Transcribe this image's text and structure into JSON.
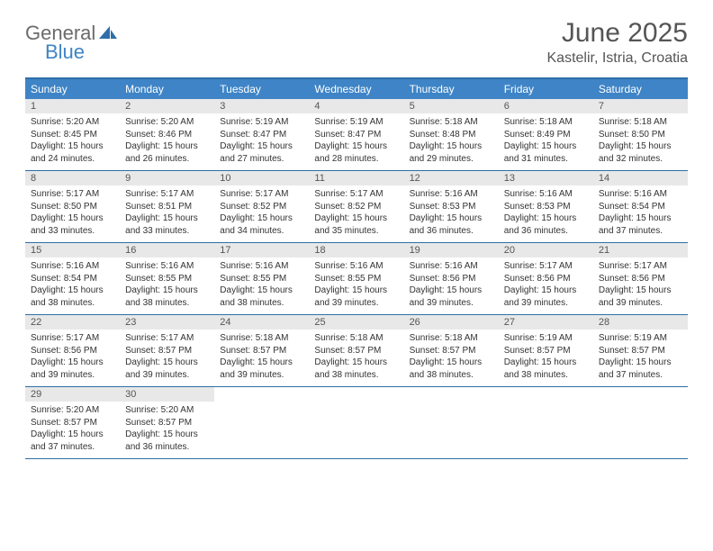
{
  "brand": {
    "text_general": "General",
    "text_blue": "Blue",
    "icon_color": "#2f6ea8"
  },
  "title": "June 2025",
  "location": "Kastelir, Istria, Croatia",
  "colors": {
    "header_bg": "#3e84c6",
    "header_text": "#ffffff",
    "border": "#2f6ea8",
    "daynum_bg": "#e8e8e8",
    "body_text": "#333333",
    "title_text": "#555555"
  },
  "day_names": [
    "Sunday",
    "Monday",
    "Tuesday",
    "Wednesday",
    "Thursday",
    "Friday",
    "Saturday"
  ],
  "weeks": [
    [
      {
        "num": "1",
        "sunrise": "Sunrise: 5:20 AM",
        "sunset": "Sunset: 8:45 PM",
        "daylight": "Daylight: 15 hours and 24 minutes."
      },
      {
        "num": "2",
        "sunrise": "Sunrise: 5:20 AM",
        "sunset": "Sunset: 8:46 PM",
        "daylight": "Daylight: 15 hours and 26 minutes."
      },
      {
        "num": "3",
        "sunrise": "Sunrise: 5:19 AM",
        "sunset": "Sunset: 8:47 PM",
        "daylight": "Daylight: 15 hours and 27 minutes."
      },
      {
        "num": "4",
        "sunrise": "Sunrise: 5:19 AM",
        "sunset": "Sunset: 8:47 PM",
        "daylight": "Daylight: 15 hours and 28 minutes."
      },
      {
        "num": "5",
        "sunrise": "Sunrise: 5:18 AM",
        "sunset": "Sunset: 8:48 PM",
        "daylight": "Daylight: 15 hours and 29 minutes."
      },
      {
        "num": "6",
        "sunrise": "Sunrise: 5:18 AM",
        "sunset": "Sunset: 8:49 PM",
        "daylight": "Daylight: 15 hours and 31 minutes."
      },
      {
        "num": "7",
        "sunrise": "Sunrise: 5:18 AM",
        "sunset": "Sunset: 8:50 PM",
        "daylight": "Daylight: 15 hours and 32 minutes."
      }
    ],
    [
      {
        "num": "8",
        "sunrise": "Sunrise: 5:17 AM",
        "sunset": "Sunset: 8:50 PM",
        "daylight": "Daylight: 15 hours and 33 minutes."
      },
      {
        "num": "9",
        "sunrise": "Sunrise: 5:17 AM",
        "sunset": "Sunset: 8:51 PM",
        "daylight": "Daylight: 15 hours and 33 minutes."
      },
      {
        "num": "10",
        "sunrise": "Sunrise: 5:17 AM",
        "sunset": "Sunset: 8:52 PM",
        "daylight": "Daylight: 15 hours and 34 minutes."
      },
      {
        "num": "11",
        "sunrise": "Sunrise: 5:17 AM",
        "sunset": "Sunset: 8:52 PM",
        "daylight": "Daylight: 15 hours and 35 minutes."
      },
      {
        "num": "12",
        "sunrise": "Sunrise: 5:16 AM",
        "sunset": "Sunset: 8:53 PM",
        "daylight": "Daylight: 15 hours and 36 minutes."
      },
      {
        "num": "13",
        "sunrise": "Sunrise: 5:16 AM",
        "sunset": "Sunset: 8:53 PM",
        "daylight": "Daylight: 15 hours and 36 minutes."
      },
      {
        "num": "14",
        "sunrise": "Sunrise: 5:16 AM",
        "sunset": "Sunset: 8:54 PM",
        "daylight": "Daylight: 15 hours and 37 minutes."
      }
    ],
    [
      {
        "num": "15",
        "sunrise": "Sunrise: 5:16 AM",
        "sunset": "Sunset: 8:54 PM",
        "daylight": "Daylight: 15 hours and 38 minutes."
      },
      {
        "num": "16",
        "sunrise": "Sunrise: 5:16 AM",
        "sunset": "Sunset: 8:55 PM",
        "daylight": "Daylight: 15 hours and 38 minutes."
      },
      {
        "num": "17",
        "sunrise": "Sunrise: 5:16 AM",
        "sunset": "Sunset: 8:55 PM",
        "daylight": "Daylight: 15 hours and 38 minutes."
      },
      {
        "num": "18",
        "sunrise": "Sunrise: 5:16 AM",
        "sunset": "Sunset: 8:55 PM",
        "daylight": "Daylight: 15 hours and 39 minutes."
      },
      {
        "num": "19",
        "sunrise": "Sunrise: 5:16 AM",
        "sunset": "Sunset: 8:56 PM",
        "daylight": "Daylight: 15 hours and 39 minutes."
      },
      {
        "num": "20",
        "sunrise": "Sunrise: 5:17 AM",
        "sunset": "Sunset: 8:56 PM",
        "daylight": "Daylight: 15 hours and 39 minutes."
      },
      {
        "num": "21",
        "sunrise": "Sunrise: 5:17 AM",
        "sunset": "Sunset: 8:56 PM",
        "daylight": "Daylight: 15 hours and 39 minutes."
      }
    ],
    [
      {
        "num": "22",
        "sunrise": "Sunrise: 5:17 AM",
        "sunset": "Sunset: 8:56 PM",
        "daylight": "Daylight: 15 hours and 39 minutes."
      },
      {
        "num": "23",
        "sunrise": "Sunrise: 5:17 AM",
        "sunset": "Sunset: 8:57 PM",
        "daylight": "Daylight: 15 hours and 39 minutes."
      },
      {
        "num": "24",
        "sunrise": "Sunrise: 5:18 AM",
        "sunset": "Sunset: 8:57 PM",
        "daylight": "Daylight: 15 hours and 39 minutes."
      },
      {
        "num": "25",
        "sunrise": "Sunrise: 5:18 AM",
        "sunset": "Sunset: 8:57 PM",
        "daylight": "Daylight: 15 hours and 38 minutes."
      },
      {
        "num": "26",
        "sunrise": "Sunrise: 5:18 AM",
        "sunset": "Sunset: 8:57 PM",
        "daylight": "Daylight: 15 hours and 38 minutes."
      },
      {
        "num": "27",
        "sunrise": "Sunrise: 5:19 AM",
        "sunset": "Sunset: 8:57 PM",
        "daylight": "Daylight: 15 hours and 38 minutes."
      },
      {
        "num": "28",
        "sunrise": "Sunrise: 5:19 AM",
        "sunset": "Sunset: 8:57 PM",
        "daylight": "Daylight: 15 hours and 37 minutes."
      }
    ],
    [
      {
        "num": "29",
        "sunrise": "Sunrise: 5:20 AM",
        "sunset": "Sunset: 8:57 PM",
        "daylight": "Daylight: 15 hours and 37 minutes."
      },
      {
        "num": "30",
        "sunrise": "Sunrise: 5:20 AM",
        "sunset": "Sunset: 8:57 PM",
        "daylight": "Daylight: 15 hours and 36 minutes."
      },
      null,
      null,
      null,
      null,
      null
    ]
  ]
}
